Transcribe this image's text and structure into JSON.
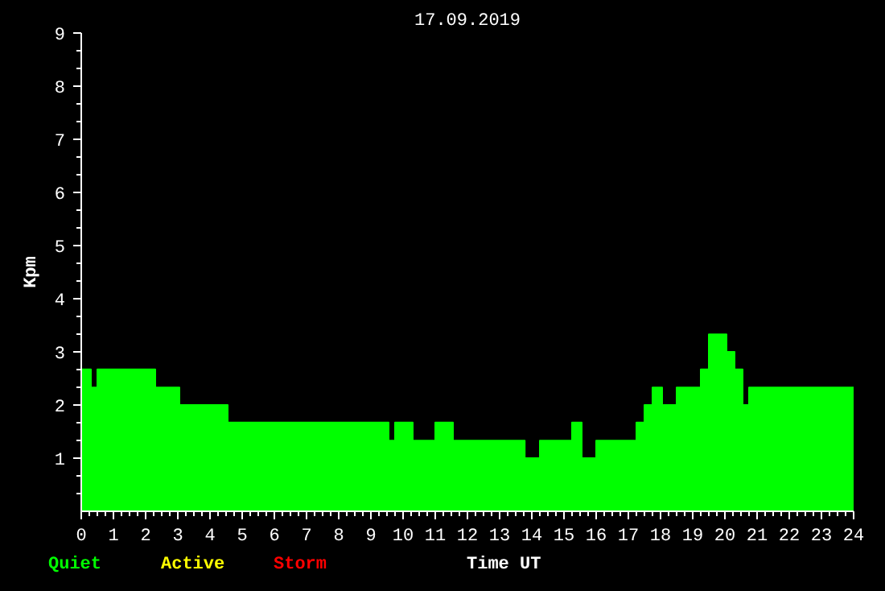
{
  "chart_data": {
    "type": "area",
    "title": "17.09.2019",
    "xlabel": "Time UT",
    "ylabel": "Kpm",
    "x": [
      0,
      0.3,
      0.3,
      0.5,
      0.5,
      2.3,
      2.3,
      3.05,
      3.05,
      4.55,
      4.55,
      9.55,
      9.55,
      9.75,
      9.75,
      10.3,
      10.3,
      11.0,
      11.0,
      11.55,
      11.55,
      13.78,
      13.78,
      14.25,
      14.25,
      15.25,
      15.25,
      15.55,
      15.55,
      16.0,
      16.0,
      17.25,
      17.25,
      17.5,
      17.5,
      17.75,
      17.75,
      18.05,
      18.05,
      18.5,
      18.5,
      19.25,
      19.25,
      19.5,
      19.5,
      20.05,
      20.05,
      20.3,
      20.3,
      20.55,
      20.55,
      20.75,
      20.75,
      24
    ],
    "series": [
      {
        "name": "Quiet",
        "color": "#00ff00",
        "values": [
          2.67,
          2.67,
          2.33,
          2.33,
          2.67,
          2.67,
          2.33,
          2.33,
          2.0,
          2.0,
          1.67,
          1.67,
          1.33,
          1.33,
          1.67,
          1.67,
          1.33,
          1.33,
          1.67,
          1.67,
          1.33,
          1.33,
          1.0,
          1.0,
          1.33,
          1.33,
          1.67,
          1.67,
          1.0,
          1.0,
          1.33,
          1.33,
          1.67,
          1.67,
          2.0,
          2.0,
          2.33,
          2.33,
          2.0,
          2.0,
          2.33,
          2.33,
          2.67,
          2.67,
          3.33,
          3.33,
          3.0,
          3.0,
          2.67,
          2.67,
          2.0,
          2.0,
          2.33,
          2.33
        ]
      },
      {
        "name": "Active",
        "color": "#ffff00",
        "values": [
          null,
          null,
          null,
          null,
          null,
          null,
          null,
          null,
          null,
          null,
          null,
          null,
          null,
          null,
          null,
          null,
          null,
          null,
          null,
          null,
          null,
          null,
          null,
          null,
          null,
          null,
          null,
          null,
          null,
          null,
          null,
          null,
          null,
          null,
          null,
          null,
          null,
          null,
          null,
          null,
          null,
          null,
          null,
          null,
          null,
          null,
          null,
          null,
          null,
          null,
          null,
          null,
          null,
          null
        ]
      },
      {
        "name": "Storm",
        "color": "#ff0000",
        "values": [
          null,
          null,
          null,
          null,
          null,
          null,
          null,
          null,
          null,
          null,
          null,
          null,
          null,
          null,
          null,
          null,
          null,
          null,
          null,
          null,
          null,
          null,
          null,
          null,
          null,
          null,
          null,
          null,
          null,
          null,
          null,
          null,
          null,
          null,
          null,
          null,
          null,
          null,
          null,
          null,
          null,
          null,
          null,
          null,
          null,
          null,
          null,
          null,
          null,
          null,
          null,
          null,
          null,
          null
        ]
      }
    ],
    "xlim": [
      0,
      24
    ],
    "xticks": [
      0,
      1,
      2,
      3,
      4,
      5,
      6,
      7,
      8,
      9,
      10,
      11,
      12,
      13,
      14,
      15,
      16,
      17,
      18,
      19,
      20,
      21,
      22,
      23,
      24
    ],
    "ylim": [
      0,
      9
    ],
    "yticks": [
      1,
      2,
      3,
      4,
      5,
      6,
      7,
      8,
      9
    ],
    "grid": false
  }
}
